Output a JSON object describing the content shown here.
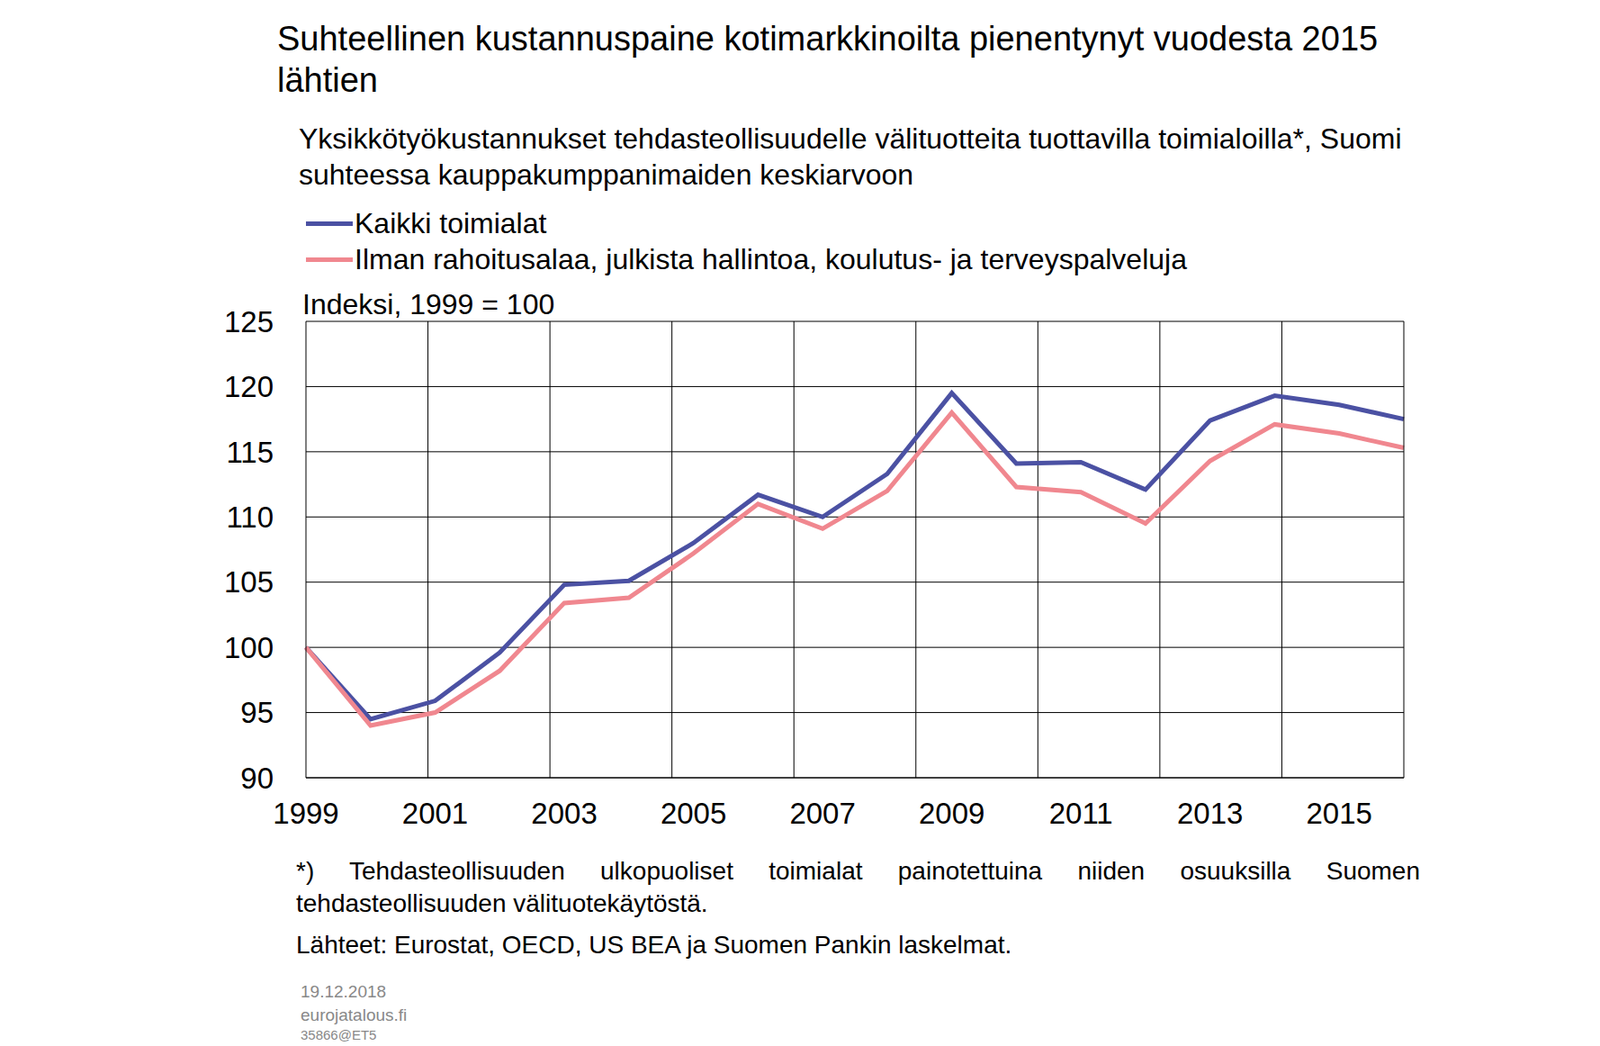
{
  "chart_data": {
    "type": "line",
    "title": "Suhteellinen kustannuspaine kotimarkkinoilta pienentynyt vuodesta 2015 lähtien",
    "subtitle": "Yksikkötyökustannukset tehdasteollisuudelle välituotteita tuottavilla toimialoilla*, Suomi suhteessa kauppakumppanimaiden keskiarvoon",
    "y_label": "Indeksi, 1999 = 100",
    "categories": [
      "1999",
      null,
      "2001",
      null,
      "2003",
      null,
      "2005",
      null,
      "2007",
      null,
      "2009",
      null,
      "2011",
      null,
      "2013",
      null,
      "2015",
      null
    ],
    "series": [
      {
        "name": "Kaikki toimialat",
        "color": "#4b51a3",
        "values": [
          100,
          94.5,
          95.9,
          99.6,
          104.8,
          105.1,
          108,
          111.7,
          110,
          113.3,
          119.5,
          114.1,
          114.2,
          112.1,
          117.4,
          119.3,
          118.6,
          117.5
        ]
      },
      {
        "name": "Ilman rahoitusalaa, julkista hallintoa, koulutus- ja terveyspalveluja",
        "color": "#f0878f",
        "values": [
          100,
          94,
          95,
          98.2,
          103.4,
          103.8,
          107.2,
          111,
          109.1,
          112,
          118,
          112.3,
          111.9,
          109.5,
          114.3,
          117.1,
          116.4,
          115.3
        ]
      }
    ],
    "ylim": [
      90,
      125
    ],
    "yticks": [
      90,
      95,
      100,
      105,
      110,
      115,
      120,
      125
    ],
    "grid": true,
    "footnote": "*) Tehdasteollisuuden ulkopuoliset toimialat painotettuina niiden osuuksilla Suomen tehdasteollisuuden välituotekäytöstä.",
    "source": "Lähteet: Eurostat, OECD, US BEA ja Suomen Pankin laskelmat.",
    "date": "19.12.2018",
    "site": "eurojatalous.fi",
    "code": "35866@ET5"
  }
}
